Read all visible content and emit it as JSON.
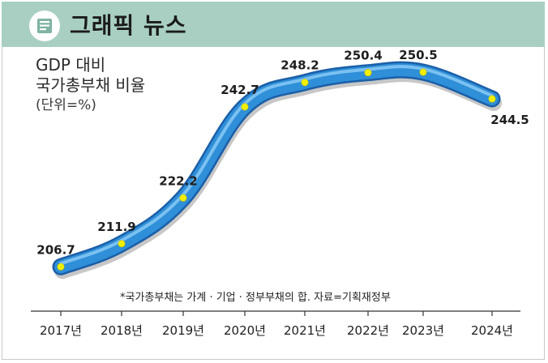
{
  "header": {
    "title": "그래픽 뉴스",
    "icon": "news-icon"
  },
  "chart_data": {
    "type": "line",
    "title": "",
    "ylabel_lines": [
      "GDP 대비",
      "국가총부채 비율"
    ],
    "unit": "(단위=%)",
    "xlabel": "",
    "categories": [
      "2017년",
      "2018년",
      "2019년",
      "2020년",
      "2021년",
      "2022년",
      "2023년",
      "2024년"
    ],
    "values": [
      206.7,
      211.9,
      222.2,
      242.7,
      248.2,
      250.4,
      250.5,
      244.5
    ],
    "value_labels": [
      "206.7",
      "211.9",
      "222.2",
      "242.7",
      "248.2",
      "250.4",
      "250.5",
      "244.5"
    ],
    "ylim": [
      200,
      258
    ],
    "grid": false,
    "legend": "none",
    "footnote": "*국가총부채는 가계 · 기업 · 정부부채의 합. 자료=기획재정부",
    "colors": {
      "line": "#2f8fd8",
      "line_dark": "#1b5fa8",
      "marker": "#f2f000",
      "header_bg": "#a9cfc3"
    }
  }
}
